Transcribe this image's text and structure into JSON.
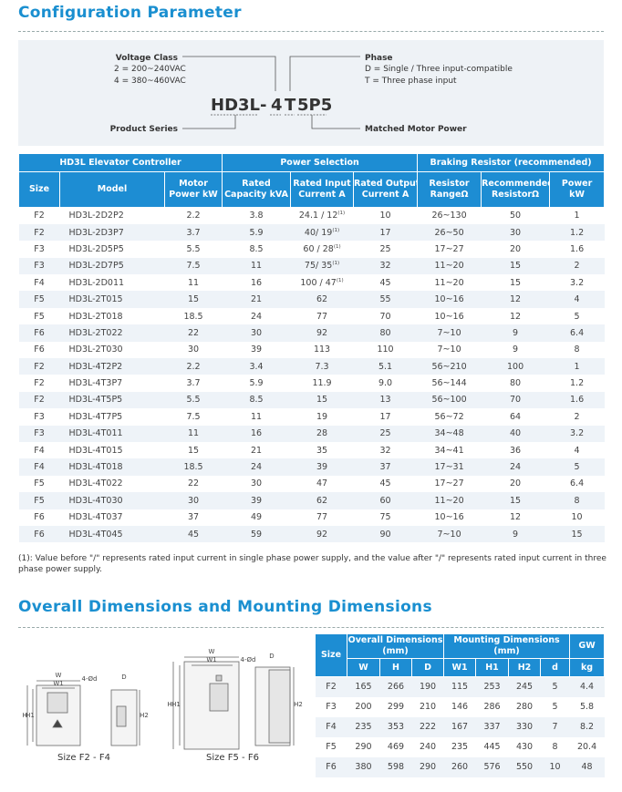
{
  "title1": "Configuration Parameter",
  "model_code": {
    "voltage_class_label": "Voltage Class",
    "voltage_options": [
      "2 = 200~240VAC",
      "4 = 380~460VAC"
    ],
    "phase_label": "Phase",
    "phase_options": [
      "D = Single / Three input-compatible",
      "T = Three phase input"
    ],
    "segments": [
      "HD3L",
      "-",
      "4",
      "T",
      "5P5"
    ],
    "product_series": "Product Series",
    "matched_motor_power": "Matched Motor Power"
  },
  "table": {
    "group_headers": [
      "HD3L Elevator Controller",
      "Power Selection",
      "Braking Resistor (recommended)"
    ],
    "headers": [
      [
        "Size"
      ],
      [
        "Model"
      ],
      [
        "Motor",
        "Power kW"
      ],
      [
        "Rated",
        "Capacity kVA"
      ],
      [
        "Rated Input",
        "Current  A"
      ],
      [
        "Rated Output",
        "Current A"
      ],
      [
        "Resistor",
        "RangeΩ"
      ],
      [
        "Recommended",
        "ResistorΩ"
      ],
      [
        "Power",
        "kW"
      ]
    ],
    "rows": [
      [
        "F2",
        "HD3L-2D2P2",
        "2.2",
        "3.8",
        {
          "text": "24.1 / 12",
          "sup": "(1)"
        },
        "10",
        "26~130",
        "50",
        "1"
      ],
      [
        "F2",
        "HD3L-2D3P7",
        "3.7",
        "5.9",
        {
          "text": "40/ 19",
          "sup": "(1)"
        },
        "17",
        "26~50",
        "30",
        "1.2"
      ],
      [
        "F3",
        "HD3L-2D5P5",
        "5.5",
        "8.5",
        {
          "text": "60 / 28",
          "sup": "(1)"
        },
        "25",
        "17~27",
        "20",
        "1.6"
      ],
      [
        "F3",
        "HD3L-2D7P5",
        "7.5",
        "11",
        {
          "text": "75/ 35",
          "sup": "(1)"
        },
        "32",
        "11~20",
        "15",
        "2"
      ],
      [
        "F4",
        "HD3L-2D011",
        "11",
        "16",
        {
          "text": "100 / 47",
          "sup": "(1)"
        },
        "45",
        "11~20",
        "15",
        "3.2"
      ],
      [
        "F5",
        "HD3L-2T015",
        "15",
        "21",
        "62",
        "55",
        "10~16",
        "12",
        "4"
      ],
      [
        "F5",
        "HD3L-2T018",
        "18.5",
        "24",
        "77",
        "70",
        "10~16",
        "12",
        "5"
      ],
      [
        "F6",
        "HD3L-2T022",
        "22",
        "30",
        "92",
        "80",
        "7~10",
        "9",
        "6.4"
      ],
      [
        "F6",
        "HD3L-2T030",
        "30",
        "39",
        "113",
        "110",
        "7~10",
        "9",
        "8"
      ],
      [
        "F2",
        "HD3L-4T2P2",
        "2.2",
        "3.4",
        "7.3",
        "5.1",
        "56~210",
        "100",
        "1"
      ],
      [
        "F2",
        "HD3L-4T3P7",
        "3.7",
        "5.9",
        "11.9",
        "9.0",
        "56~144",
        "80",
        "1.2"
      ],
      [
        "F2",
        "HD3L-4T5P5",
        "5.5",
        "8.5",
        "15",
        "13",
        "56~100",
        "70",
        "1.6"
      ],
      [
        "F3",
        "HD3L-4T7P5",
        "7.5",
        "11",
        "19",
        "17",
        "56~72",
        "64",
        "2"
      ],
      [
        "F3",
        "HD3L-4T011",
        "11",
        "16",
        "28",
        "25",
        "34~48",
        "40",
        "3.2"
      ],
      [
        "F4",
        "HD3L-4T015",
        "15",
        "21",
        "35",
        "32",
        "34~41",
        "36",
        "4"
      ],
      [
        "F4",
        "HD3L-4T018",
        "18.5",
        "24",
        "39",
        "37",
        "17~31",
        "24",
        "5"
      ],
      [
        "F5",
        "HD3L-4T022",
        "22",
        "30",
        "47",
        "45",
        "17~27",
        "20",
        "6.4"
      ],
      [
        "F5",
        "HD3L-4T030",
        "30",
        "39",
        "62",
        "60",
        "11~20",
        "15",
        "8"
      ],
      [
        "F6",
        "HD3L-4T037",
        "37",
        "49",
        "77",
        "75",
        "10~16",
        "12",
        "10"
      ],
      [
        "F6",
        "HD3L-4T045",
        "45",
        "59",
        "92",
        "90",
        "7~10",
        "9",
        "15"
      ]
    ]
  },
  "footnote": "(1): Value before \"/\" represents rated input current in single phase power supply, and the value after \"/\" represents rated input current in three phase power supply.",
  "title2": "Overall Dimensions and Mounting Dimensions",
  "drawings": [
    {
      "caption": "Size F2 - F4",
      "labels": [
        "W",
        "W1",
        "4-Ød",
        "H",
        "H1",
        "D",
        "H2"
      ]
    },
    {
      "caption": "Size F5 - F6",
      "labels": [
        "W",
        "W1",
        "4-Ød",
        "H",
        "H1",
        "D",
        "H2"
      ]
    }
  ],
  "dim_table": {
    "size_header": "Size",
    "group_headers": [
      [
        "Overall Dimensions",
        "(mm)"
      ],
      [
        "Mounting Dimensions",
        "(mm)"
      ],
      [
        "GW"
      ]
    ],
    "headers": [
      "W",
      "H",
      "D",
      "W1",
      "H1",
      "H2",
      "d",
      "kg"
    ],
    "rows": [
      [
        "F2",
        "165",
        "266",
        "190",
        "115",
        "253",
        "245",
        "5",
        "4.4"
      ],
      [
        "F3",
        "200",
        "299",
        "210",
        "146",
        "286",
        "280",
        "5",
        "5.8"
      ],
      [
        "F4",
        "235",
        "353",
        "222",
        "167",
        "337",
        "330",
        "7",
        "8.2"
      ],
      [
        "F5",
        "290",
        "469",
        "240",
        "235",
        "445",
        "430",
        "8",
        "20.4"
      ],
      [
        "F6",
        "380",
        "598",
        "290",
        "260",
        "576",
        "550",
        "10",
        "48"
      ]
    ]
  }
}
